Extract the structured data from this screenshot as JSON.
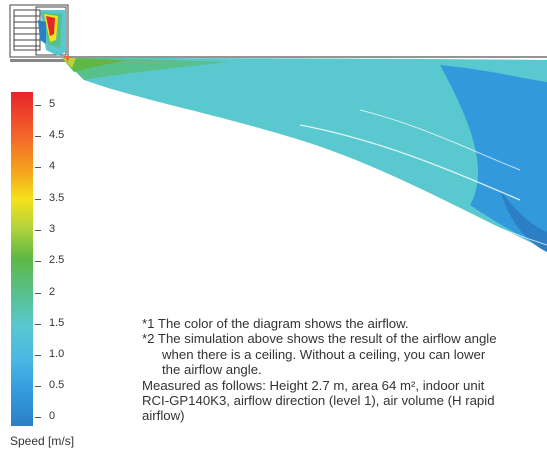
{
  "legend": {
    "title": "Speed [m/s]",
    "ticks": [
      "5",
      "4.5",
      "4",
      "3.5",
      "3",
      "2.5",
      "2",
      "1.5",
      "1.0",
      "0.5",
      "0"
    ]
  },
  "notes": {
    "note1": "*1 The color of the diagram shows the airflow.",
    "note2_line1": "*2 The simulation above shows the result of the airflow angle",
    "note2_line2": "when there is a ceiling. Without a ceiling, you can lower",
    "note2_line3": "the airflow angle.",
    "measured_line1": "Measured as follows: Height 2.7 m, area 64 m², indoor unit",
    "measured_line2": "RCI-GP140K3, airflow direction (level 1), air volume (H rapid",
    "measured_line3": "airflow)"
  },
  "colors": {
    "max": "#e8242a",
    "high": "#f5e21a",
    "mid": "#5db845",
    "low_mid": "#5ac8cf",
    "low": "#2c7fc4"
  }
}
